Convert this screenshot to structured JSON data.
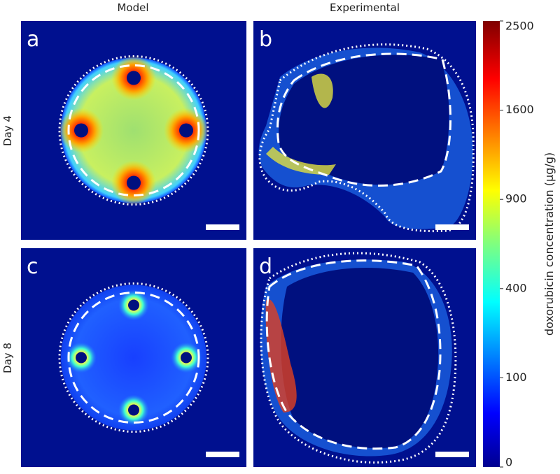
{
  "columns": [
    "Model",
    "Experimental"
  ],
  "rows": [
    "Day 4",
    "Day 8"
  ],
  "panels": [
    "a",
    "b",
    "c",
    "d"
  ],
  "colorbar": {
    "label": "doxorubicin concentration (μg/g)",
    "lim": [
      0,
      2500
    ],
    "scale": "sqrt",
    "ticks": [
      0,
      100,
      400,
      900,
      1600,
      2500
    ]
  }
}
